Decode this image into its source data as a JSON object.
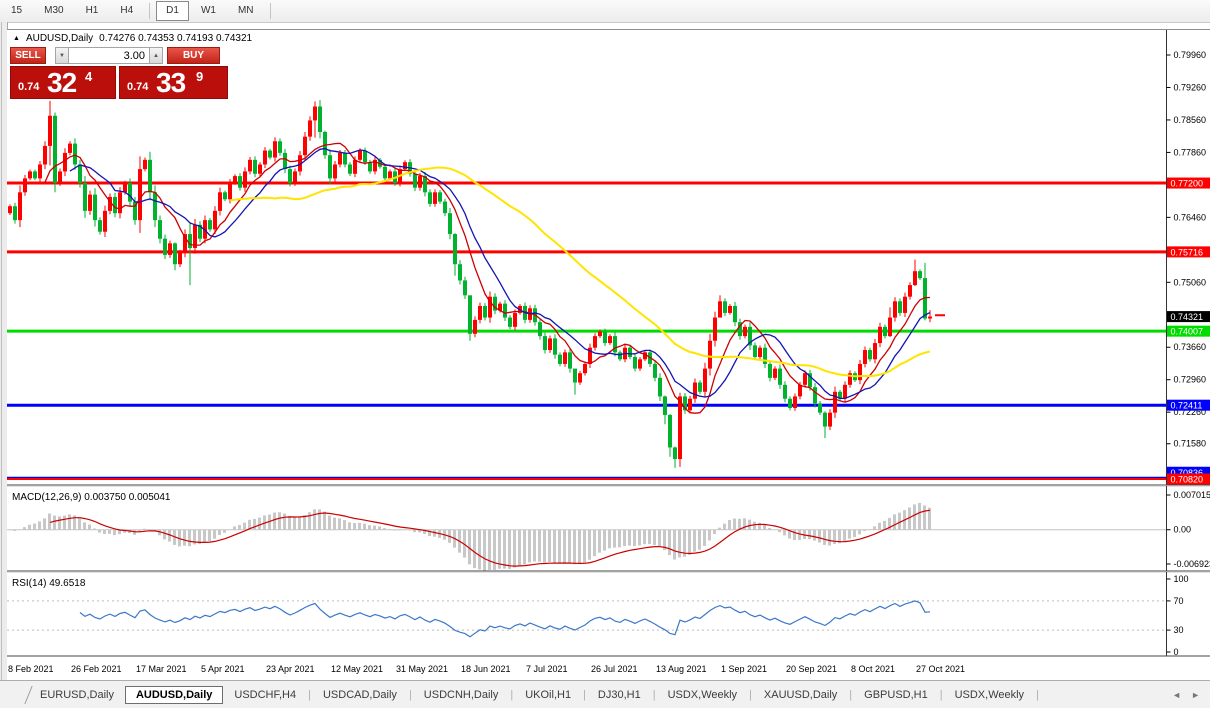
{
  "toolbar": {
    "timeframes": [
      "15",
      "M30",
      "H1",
      "H4",
      "D1",
      "W1",
      "MN"
    ],
    "active": "D1"
  },
  "header": {
    "collapse_icon": "▲",
    "title": "AUDUSD,Daily",
    "ohlc": "0.74276 0.74353 0.74193 0.74321"
  },
  "trade_panel": {
    "sell_label": "SELL",
    "buy_label": "BUY",
    "volume": "3.00",
    "down_icon": "▼",
    "up_icon": "▲",
    "sell_small": "0.74",
    "sell_big": "32",
    "sell_sup": "4",
    "buy_small": "0.74",
    "buy_big": "33",
    "buy_sup": "9"
  },
  "chart_data": {
    "type": "candlestick",
    "symbol": "AUDUSD",
    "timeframe": "Daily",
    "colors": {
      "up": "#ff0000",
      "down": "#00b22d"
    },
    "y_axis": {
      "ticks": [
        {
          "v": 0.7996,
          "label": "0.79960"
        },
        {
          "v": 0.7926,
          "label": "0.79260"
        },
        {
          "v": 0.7856,
          "label": "0.78560"
        },
        {
          "v": 0.7786,
          "label": "0.77860"
        },
        {
          "v": 0.7646,
          "label": "0.76460"
        },
        {
          "v": 0.7506,
          "label": "0.75060"
        },
        {
          "v": 0.7366,
          "label": "0.73660"
        },
        {
          "v": 0.7296,
          "label": "0.72960"
        },
        {
          "v": 0.7226,
          "label": "0.72260"
        },
        {
          "v": 0.7158,
          "label": "0.71580"
        }
      ],
      "current": {
        "v": 0.74321,
        "label": "0.74321",
        "bg": "#000000",
        "fg": "#ffffff"
      }
    },
    "levels": [
      {
        "v": 0.772,
        "label": "0.77200",
        "color": "#ff0000",
        "width": 3
      },
      {
        "v": 0.75716,
        "label": "0.75716",
        "color": "#ff0000",
        "width": 3
      },
      {
        "v": 0.74007,
        "label": "0.74007",
        "color": "#00dc00",
        "width": 3
      },
      {
        "v": 0.72411,
        "label": "0.72411",
        "color": "#0000ff",
        "width": 3
      },
      {
        "v": 0.70836,
        "label": "0.70836",
        "color": "#0000ff",
        "width": 3
      },
      {
        "v": 0.7082,
        "label": "0.70820",
        "color": "#ff0000",
        "width": 2
      }
    ],
    "x_axis": [
      {
        "day": 0,
        "label": "8 Feb 2021"
      },
      {
        "day": 13,
        "label": "26 Feb 2021"
      },
      {
        "day": 26,
        "label": "17 Mar 2021"
      },
      {
        "day": 39,
        "label": "5 Apr 2021"
      },
      {
        "day": 52,
        "label": "23 Apr 2021"
      },
      {
        "day": 65,
        "label": "12 May 2021"
      },
      {
        "day": 78,
        "label": "31 May 2021"
      },
      {
        "day": 91,
        "label": "18 Jun 2021"
      },
      {
        "day": 104,
        "label": "7 Jul 2021"
      },
      {
        "day": 117,
        "label": "26 Jul 2021"
      },
      {
        "day": 130,
        "label": "13 Aug 2021"
      },
      {
        "day": 143,
        "label": "1 Sep 2021"
      },
      {
        "day": 156,
        "label": "20 Sep 2021"
      },
      {
        "day": 169,
        "label": "8 Oct 2021"
      },
      {
        "day": 182,
        "label": "27 Oct 2021"
      }
    ],
    "candles": {
      "first_open": 0.7655,
      "closes": [
        0.767,
        0.764,
        0.77,
        0.773,
        0.7745,
        0.773,
        0.776,
        0.78,
        0.7865,
        0.772,
        0.7745,
        0.7785,
        0.7805,
        0.776,
        0.772,
        0.766,
        0.7695,
        0.764,
        0.7615,
        0.766,
        0.769,
        0.7655,
        0.77,
        0.772,
        0.768,
        0.764,
        0.775,
        0.777,
        0.77,
        0.764,
        0.76,
        0.7565,
        0.759,
        0.7545,
        0.757,
        0.761,
        0.758,
        0.763,
        0.76,
        0.764,
        0.762,
        0.766,
        0.77,
        0.7685,
        0.772,
        0.7735,
        0.771,
        0.7745,
        0.777,
        0.774,
        0.776,
        0.779,
        0.7775,
        0.781,
        0.7785,
        0.775,
        0.772,
        0.7745,
        0.778,
        0.782,
        0.7855,
        0.7885,
        0.783,
        0.778,
        0.773,
        0.776,
        0.7785,
        0.776,
        0.774,
        0.777,
        0.779,
        0.7765,
        0.7745,
        0.777,
        0.7755,
        0.773,
        0.7745,
        0.772,
        0.775,
        0.7765,
        0.774,
        0.771,
        0.7735,
        0.77,
        0.7675,
        0.77,
        0.768,
        0.7655,
        0.761,
        0.7545,
        0.751,
        0.7478,
        0.7395,
        0.7425,
        0.7455,
        0.743,
        0.7475,
        0.7445,
        0.746,
        0.743,
        0.741,
        0.744,
        0.7455,
        0.7425,
        0.745,
        0.742,
        0.739,
        0.736,
        0.7385,
        0.735,
        0.733,
        0.7355,
        0.732,
        0.729,
        0.731,
        0.733,
        0.7365,
        0.739,
        0.74,
        0.7375,
        0.739,
        0.7355,
        0.734,
        0.7365,
        0.7345,
        0.732,
        0.734,
        0.7355,
        0.733,
        0.73,
        0.726,
        0.722,
        0.715,
        0.7125,
        0.726,
        0.723,
        0.7255,
        0.729,
        0.727,
        0.732,
        0.738,
        0.743,
        0.7465,
        0.744,
        0.7455,
        0.742,
        0.739,
        0.741,
        0.737,
        0.7345,
        0.7365,
        0.733,
        0.73,
        0.732,
        0.7285,
        0.7255,
        0.7235,
        0.726,
        0.7285,
        0.731,
        0.728,
        0.7245,
        0.7225,
        0.7195,
        0.7225,
        0.727,
        0.7255,
        0.7285,
        0.731,
        0.7295,
        0.733,
        0.736,
        0.734,
        0.7375,
        0.741,
        0.739,
        0.743,
        0.7465,
        0.744,
        0.7475,
        0.75,
        0.753,
        0.7515,
        0.7428,
        0.74321
      ],
      "wicks": {
        "8": [
          0.7897,
          0.7758
        ],
        "9": [
          0.7872,
          0.77
        ],
        "33": [
          0.7592,
          0.7532
        ],
        "36": [
          0.7636,
          0.75
        ],
        "61": [
          0.7896,
          0.7818
        ],
        "63": [
          0.7833,
          0.7772
        ],
        "89": [
          0.7612,
          0.752
        ],
        "92": [
          0.743,
          0.738
        ],
        "113": [
          0.7312,
          0.7264
        ],
        "131": [
          0.7262,
          0.72
        ],
        "132": [
          0.7222,
          0.713
        ],
        "133": [
          0.7152,
          0.7106
        ],
        "134": [
          0.7268,
          0.7108
        ],
        "142": [
          0.7478,
          0.7432
        ],
        "163": [
          0.7228,
          0.717
        ],
        "176": [
          0.7452,
          0.7388
        ],
        "181": [
          0.7555,
          0.7498
        ],
        "183": [
          0.7548,
          0.7424
        ],
        "184": [
          0.7446,
          0.742
        ]
      }
    },
    "moving_averages": [
      {
        "period": 8,
        "color": "#cc0000",
        "width": 1.3
      },
      {
        "period": 13,
        "color": "#1414b4",
        "width": 1.3
      },
      {
        "period": 45,
        "color": "#ffe400",
        "width": 2
      }
    ],
    "price_marker": {
      "v": 0.7435,
      "color": "#ff0000"
    }
  },
  "macd": {
    "label": "MACD(12,26,9)",
    "values": "0.003750 0.005041",
    "fast": 12,
    "slow": 26,
    "signal": 9,
    "hist_color": "#c8c8c8",
    "signal_color": "#cc0000",
    "axis": [
      {
        "v": 0.007015,
        "label": "0.007015"
      },
      {
        "v": 0,
        "label": "0.00"
      },
      {
        "v": -0.006923,
        "label": "-0.006923"
      }
    ]
  },
  "rsi": {
    "label": "RSI(14)",
    "value": "49.6518",
    "period": 14,
    "color": "#3c78c8",
    "bands": [
      70,
      30
    ],
    "axis": [
      {
        "v": 100,
        "label": "100"
      },
      {
        "v": 70,
        "label": "70"
      },
      {
        "v": 30,
        "label": "30"
      },
      {
        "v": 0,
        "label": "0"
      }
    ]
  },
  "tabs": {
    "items": [
      "EURUSD,Daily",
      "AUDUSD,Daily",
      "USDCHF,H4",
      "USDCAD,Daily",
      "USDCNH,Daily",
      "UKOil,H1",
      "DJ30,H1",
      "USDX,Weekly",
      "XAUUSD,Daily",
      "GBPUSD,H1",
      "USDX,Weekly"
    ],
    "active_index": 1,
    "left_arrow": "◄",
    "right_arrow": "►"
  }
}
